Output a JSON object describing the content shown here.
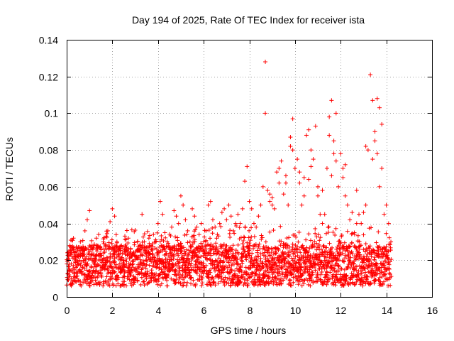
{
  "chart_data": {
    "type": "scatter",
    "title": "Day 194 of 2025, Rate Of TEC Index for receiver ista",
    "xlabel": "GPS time / hours",
    "ylabel": "ROTI / TECUs",
    "xlim": [
      0,
      16
    ],
    "ylim": [
      0,
      0.14
    ],
    "xticks": [
      0,
      2,
      4,
      6,
      8,
      10,
      12,
      14,
      16
    ],
    "yticks": [
      0,
      0.02,
      0.04,
      0.06,
      0.08,
      0.1,
      0.12,
      0.14
    ],
    "xtick_labels": [
      "0",
      "2",
      "4",
      "6",
      "8",
      "10",
      "12",
      "14",
      "16"
    ],
    "ytick_labels": [
      "0",
      "0.02",
      "0.04",
      "0.06",
      "0.08",
      "0.1",
      "0.12",
      "0.14"
    ],
    "grid": true,
    "marker": "+",
    "color": "#ff0000",
    "series": [
      {
        "name": "ROTI",
        "points": [
          [
            0.1,
            0.012
          ],
          [
            0.2,
            0.018
          ],
          [
            0.3,
            0.025
          ],
          [
            0.4,
            0.02
          ],
          [
            0.5,
            0.014
          ],
          [
            0.6,
            0.03
          ],
          [
            0.7,
            0.022
          ],
          [
            0.8,
            0.036
          ],
          [
            0.9,
            0.042
          ],
          [
            1.0,
            0.047
          ],
          [
            1.1,
            0.028
          ],
          [
            1.2,
            0.02
          ],
          [
            1.3,
            0.032
          ],
          [
            1.4,
            0.034
          ],
          [
            1.5,
            0.026
          ],
          [
            1.6,
            0.03
          ],
          [
            1.7,
            0.018
          ],
          [
            1.8,
            0.036
          ],
          [
            1.9,
            0.041
          ],
          [
            2.0,
            0.048
          ],
          [
            2.1,
            0.044
          ],
          [
            2.2,
            0.03
          ],
          [
            2.3,
            0.022
          ],
          [
            2.4,
            0.028
          ],
          [
            2.5,
            0.02
          ],
          [
            2.6,
            0.025
          ],
          [
            2.7,
            0.032
          ],
          [
            2.8,
            0.026
          ],
          [
            2.9,
            0.018
          ],
          [
            3.0,
            0.022
          ],
          [
            3.1,
            0.03
          ],
          [
            3.2,
            0.028
          ],
          [
            3.3,
            0.045
          ],
          [
            3.4,
            0.03
          ],
          [
            3.5,
            0.027
          ],
          [
            3.6,
            0.032
          ],
          [
            3.7,
            0.028
          ],
          [
            3.8,
            0.034
          ],
          [
            3.9,
            0.03
          ],
          [
            4.0,
            0.04
          ],
          [
            4.1,
            0.052
          ],
          [
            4.2,
            0.045
          ],
          [
            4.3,
            0.035
          ],
          [
            4.4,
            0.03
          ],
          [
            4.5,
            0.026
          ],
          [
            4.6,
            0.038
          ],
          [
            4.7,
            0.047
          ],
          [
            4.8,
            0.044
          ],
          [
            4.9,
            0.04
          ],
          [
            5.0,
            0.055
          ],
          [
            5.1,
            0.05
          ],
          [
            5.2,
            0.042
          ],
          [
            5.3,
            0.036
          ],
          [
            5.4,
            0.03
          ],
          [
            5.5,
            0.048
          ],
          [
            5.6,
            0.044
          ],
          [
            5.7,
            0.038
          ],
          [
            5.8,
            0.034
          ],
          [
            5.9,
            0.04
          ],
          [
            6.0,
            0.03
          ],
          [
            6.1,
            0.036
          ],
          [
            6.2,
            0.05
          ],
          [
            6.3,
            0.052
          ],
          [
            6.4,
            0.042
          ],
          [
            6.5,
            0.038
          ],
          [
            6.6,
            0.034
          ],
          [
            6.7,
            0.04
          ],
          [
            6.8,
            0.046
          ],
          [
            6.9,
            0.048
          ],
          [
            7.0,
            0.042
          ],
          [
            7.1,
            0.05
          ],
          [
            7.2,
            0.044
          ],
          [
            7.3,
            0.036
          ],
          [
            7.4,
            0.04
          ],
          [
            7.5,
            0.045
          ],
          [
            7.6,
            0.04
          ],
          [
            7.7,
            0.048
          ],
          [
            7.8,
            0.063
          ],
          [
            7.9,
            0.071
          ],
          [
            8.0,
            0.052
          ],
          [
            8.1,
            0.048
          ],
          [
            8.2,
            0.04
          ],
          [
            8.3,
            0.038
          ],
          [
            8.4,
            0.044
          ],
          [
            8.5,
            0.05
          ],
          [
            8.6,
            0.06
          ],
          [
            8.7,
            0.1
          ],
          [
            8.7,
            0.128
          ],
          [
            8.8,
            0.058
          ],
          [
            8.9,
            0.052
          ],
          [
            9.0,
            0.05
          ],
          [
            9.1,
            0.048
          ],
          [
            9.2,
            0.068
          ],
          [
            9.3,
            0.07
          ],
          [
            9.4,
            0.074
          ],
          [
            9.5,
            0.056
          ],
          [
            9.6,
            0.062
          ],
          [
            9.7,
            0.05
          ],
          [
            9.8,
            0.082
          ],
          [
            9.9,
            0.097
          ],
          [
            10.0,
            0.07
          ],
          [
            10.1,
            0.075
          ],
          [
            10.2,
            0.062
          ],
          [
            10.3,
            0.05
          ],
          [
            10.4,
            0.055
          ],
          [
            10.5,
            0.088
          ],
          [
            10.6,
            0.091
          ],
          [
            10.7,
            0.08
          ],
          [
            10.8,
            0.075
          ],
          [
            10.9,
            0.093
          ],
          [
            11.0,
            0.055
          ],
          [
            11.1,
            0.045
          ],
          [
            11.2,
            0.04
          ],
          [
            11.3,
            0.045
          ],
          [
            11.4,
            0.07
          ],
          [
            11.5,
            0.098
          ],
          [
            11.6,
            0.107
          ],
          [
            11.7,
            0.085
          ],
          [
            11.8,
            0.1
          ],
          [
            11.9,
            0.06
          ],
          [
            12.0,
            0.078
          ],
          [
            12.1,
            0.065
          ],
          [
            12.2,
            0.055
          ],
          [
            12.3,
            0.05
          ],
          [
            12.4,
            0.042
          ],
          [
            12.5,
            0.046
          ],
          [
            12.6,
            0.035
          ],
          [
            12.7,
            0.04
          ],
          [
            12.8,
            0.045
          ],
          [
            12.9,
            0.04
          ],
          [
            13.0,
            0.046
          ],
          [
            13.1,
            0.05
          ],
          [
            13.2,
            0.08
          ],
          [
            13.3,
            0.121
          ],
          [
            13.4,
            0.107
          ],
          [
            13.5,
            0.09
          ],
          [
            13.6,
            0.108
          ],
          [
            13.7,
            0.103
          ],
          [
            13.8,
            0.07
          ],
          [
            13.9,
            0.045
          ],
          [
            14.0,
            0.05
          ],
          [
            14.1,
            0.04
          ],
          [
            14.2,
            0.03
          ],
          [
            11.6,
            0.066
          ],
          [
            11.8,
            0.074
          ],
          [
            12.2,
            0.072
          ],
          [
            12.7,
            0.058
          ],
          [
            13.1,
            0.082
          ],
          [
            13.5,
            0.085
          ],
          [
            13.8,
            0.094
          ],
          [
            13.6,
            0.078
          ],
          [
            13.4,
            0.075
          ],
          [
            13.7,
            0.06
          ],
          [
            10.2,
            0.068
          ],
          [
            10.4,
            0.065
          ],
          [
            9.6,
            0.066
          ],
          [
            9.3,
            0.062
          ],
          [
            10.6,
            0.064
          ],
          [
            11.2,
            0.058
          ],
          [
            11.0,
            0.06
          ],
          [
            9.9,
            0.08
          ],
          [
            9.8,
            0.087
          ],
          [
            10.7,
            0.071
          ],
          [
            11.5,
            0.088
          ],
          [
            11.7,
            0.078
          ],
          [
            12.1,
            0.07
          ],
          [
            8.9,
            0.056
          ],
          [
            9.0,
            0.054
          ]
        ]
      }
    ]
  }
}
